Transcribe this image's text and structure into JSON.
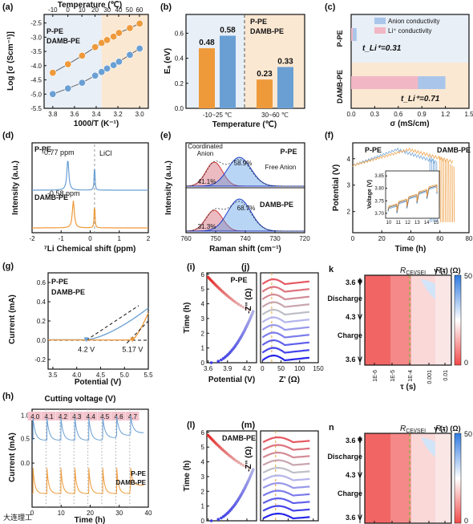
{
  "colors": {
    "ppe": "#6a9fd4",
    "dambpe": "#ee9a3b",
    "red": "#d23b3b",
    "blue": "#1f3fc8",
    "green": "#7bb33a",
    "pink": "#e9a0c9",
    "bandBlue": "#e8eff7",
    "bandOrange": "#fbe8d2"
  },
  "watermark": "大连理工",
  "chart_data": [
    {
      "id": "a",
      "panel_label": "(a)",
      "type": "scatter",
      "top_xlabel": "Temperature (℃)",
      "top_ticks": [
        "-10",
        "0",
        "10",
        "20",
        "30",
        "40",
        "50",
        "60"
      ],
      "xlabel": "1000/T (K⁻¹)",
      "ylabel": "Log [σ (Scm⁻¹)]",
      "x_ticks": [
        "3.8",
        "3.6",
        "3.4",
        "3.2",
        "3.0"
      ],
      "y_ticks": [
        "-2.5",
        "-3.0",
        "-3.5",
        "-4.0",
        "-4.5",
        "-5.0",
        "-5.5"
      ],
      "xlim": [
        3.88,
        2.92
      ],
      "ylim": [
        -5.5,
        -2.2
      ],
      "series": [
        {
          "name": "P-PE",
          "x": [
            3.8,
            3.66,
            3.53,
            3.41,
            3.35,
            3.3,
            3.24,
            3.19,
            3.09,
            3.0
          ],
          "y": [
            -5.0,
            -4.8,
            -4.6,
            -4.35,
            -4.22,
            -4.1,
            -3.98,
            -3.86,
            -3.62,
            -3.4
          ]
        },
        {
          "name": "DAMB-PE",
          "x": [
            3.8,
            3.66,
            3.53,
            3.41,
            3.35,
            3.3,
            3.24,
            3.19,
            3.09,
            3.0
          ],
          "y": [
            -4.25,
            -3.95,
            -3.65,
            -3.35,
            -3.2,
            -3.1,
            -2.98,
            -2.85,
            -2.68,
            -2.52
          ]
        }
      ]
    },
    {
      "id": "b",
      "panel_label": "(b)",
      "type": "bar",
      "ylabel": "Eₐ (eV)",
      "xlabel": "Temperature (℃)",
      "categories": [
        "-10~25 ℃",
        "30~60 ℃"
      ],
      "y_ticks": [
        "0.0",
        "0.2",
        "0.4",
        "0.6"
      ],
      "ylim": [
        0,
        0.75
      ],
      "series": [
        {
          "name": "P-PE",
          "values": [
            0.58,
            0.33
          ]
        },
        {
          "name": "DAMB-PE",
          "values": [
            0.48,
            0.23
          ]
        }
      ],
      "labels": [
        "0.48",
        "0.58",
        "0.23",
        "0.33"
      ]
    },
    {
      "id": "c",
      "panel_label": "(c)",
      "type": "bar",
      "xlabel": "σ (mS/cm)",
      "x_ticks": [
        "0.0",
        "0.3",
        "0.6",
        "0.9",
        "1.2",
        "1.5"
      ],
      "xlim": [
        0,
        1.5
      ],
      "legend": [
        "Anion conductivity",
        "Li⁺ conductivity"
      ],
      "rows": [
        {
          "name": "P-PE",
          "total": 0.07,
          "li": 0.022,
          "t": "t_Li⁺=0.31"
        },
        {
          "name": "DAMB-PE",
          "total": 1.2,
          "li": 0.85,
          "t": "t_Li⁺=0.71"
        }
      ]
    },
    {
      "id": "d",
      "panel_label": "(d)",
      "type": "line",
      "xlabel": "⁷Li Chemical shift (ppm)",
      "ylabel": "Intensity (a.u.)",
      "x_ticks": [
        "-2",
        "-1",
        "0",
        "1",
        "2"
      ],
      "xlim": [
        -2,
        2
      ],
      "series": [
        {
          "name": "P-PE",
          "peak": -0.77,
          "label": "-0.77 ppm"
        },
        {
          "name": "DAMB-PE",
          "peak": -0.58,
          "label": "-0.58 ppm"
        }
      ],
      "ref": "LiCl"
    },
    {
      "id": "e",
      "panel_label": "(e)",
      "type": "area",
      "xlabel": "Raman shift (cm⁻¹)",
      "ylabel": "Intensity (a.u.)",
      "x_ticks": [
        "760",
        "750",
        "740",
        "730",
        "720"
      ],
      "xlim": [
        760,
        720
      ],
      "annotations": [
        "Coordinated Anion",
        "Free Anion"
      ],
      "series": [
        {
          "name": "P-PE",
          "coordinated": "41.1%",
          "free": "58.9%"
        },
        {
          "name": "DAMB-PE",
          "coordinated": "31.3%",
          "free": "68.7%"
        }
      ]
    },
    {
      "id": "f",
      "panel_label": "(f)",
      "type": "line",
      "xlabel": "Time (h)",
      "ylabel": "Potential (V)",
      "x_ticks": [
        "0",
        "20",
        "40",
        "60",
        "80"
      ],
      "y_ticks": [
        "2",
        "3",
        "4"
      ],
      "xlim": [
        0,
        80
      ],
      "ylim": [
        1.2,
        4.6
      ],
      "inset": {
        "ylabel": "Voltage (V)",
        "y_ticks": [
          "3.85",
          "3.80",
          "3.75",
          "3.70"
        ],
        "x_ticks": [
          "10",
          "11",
          "12",
          "13",
          "14",
          "15"
        ]
      },
      "series": [
        {
          "name": "P-PE"
        },
        {
          "name": "DAMB-PE"
        }
      ]
    },
    {
      "id": "g",
      "panel_label": "(g)",
      "type": "line",
      "xlabel": "Potential (V)",
      "ylabel": "Current (mA)",
      "x_ticks": [
        "3.5",
        "4.0",
        "4.5",
        "5.0",
        "5.5"
      ],
      "y_ticks": [
        "0.6",
        "0.4",
        "0.2",
        "0.0",
        "-0.2"
      ],
      "xlim": [
        3.4,
        5.5
      ],
      "ylim": [
        -0.3,
        0.7
      ],
      "series": [
        {
          "name": "P-PE",
          "onset": "4.2 V"
        },
        {
          "name": "DAMB-PE",
          "onset": "5.17 V"
        }
      ]
    },
    {
      "id": "h",
      "panel_label": "(h)",
      "type": "line",
      "xlabel": "Time (h)",
      "ylabel": "Current (mA)",
      "title": "Cutting voltage (V)",
      "cut": [
        "4.0",
        "4.1",
        "4.2",
        "4.3",
        "4.4",
        "4.5",
        "4.6",
        "4.7"
      ],
      "x_ticks": [
        "0",
        "10",
        "20",
        "30",
        "40"
      ],
      "y_ticks": [
        "1.0",
        "0.5",
        "0.0"
      ],
      "xlim": [
        0,
        40
      ],
      "series": [
        {
          "name": "P-PE"
        },
        {
          "name": "DAMB-PE"
        }
      ]
    },
    {
      "id": "i",
      "panel_label": "(i)",
      "type": "scatter",
      "name": "P-PE",
      "xlabel": "Potential (V)",
      "ylabel": "Time (h)",
      "x_ticks": [
        "3.6",
        "3.9",
        "4.2"
      ],
      "y_ticks": [
        "0",
        "1",
        "2",
        "3",
        "4",
        "5",
        "6"
      ]
    },
    {
      "id": "j",
      "panel_label": "(j)",
      "type": "line",
      "xlabel": "Z' (Ω)",
      "ylabel": "-Z'' (Ω)",
      "x_ticks": [
        "0",
        "50",
        "100",
        "150"
      ]
    },
    {
      "id": "k",
      "panel_label": "(k)",
      "type": "heatmap",
      "xlabel": "τ (s)",
      "x_ticks": [
        "1E-6",
        "1E-5",
        "1E-4",
        "0.001",
        "0.01"
      ],
      "y_labels": [
        "3.6 V",
        "Discharge",
        "4.3 V",
        "Charge",
        "3.6 V"
      ],
      "markers": [
        "R_CEI/SEI",
        "R_ct"
      ],
      "colorbar": {
        "label": "γ (τ) (Ω)",
        "max": "50",
        "min": "0"
      }
    },
    {
      "id": "l",
      "panel_label": "(l)",
      "type": "scatter",
      "name": "DAMB-PE",
      "xlabel": "Potential (V)",
      "ylabel": "Time (h)",
      "x_ticks": [
        "3.6",
        "3.9",
        "4.2"
      ],
      "y_ticks": [
        "0",
        "1",
        "2",
        "3",
        "4",
        "5",
        "6"
      ]
    },
    {
      "id": "m",
      "panel_label": "(m)",
      "type": "line",
      "xlabel": "Z' (Ω)",
      "ylabel": "-Z'' (Ω)",
      "x_ticks": [
        "0",
        "50",
        "100"
      ]
    },
    {
      "id": "n",
      "panel_label": "(n)",
      "type": "heatmap",
      "xlabel": "τ (s)",
      "x_ticks": [
        "1E-6",
        "1E-5",
        "1E-4",
        "0.001",
        "0.01"
      ],
      "y_labels": [
        "3.6 V",
        "Discharge",
        "4.3 V",
        "Charge",
        "3.6 V"
      ],
      "markers": [
        "R_CEI/SEI",
        "R_ct"
      ],
      "colorbar": {
        "label": "γ (τ) (Ω)",
        "max": "50",
        "min": "0"
      }
    }
  ]
}
